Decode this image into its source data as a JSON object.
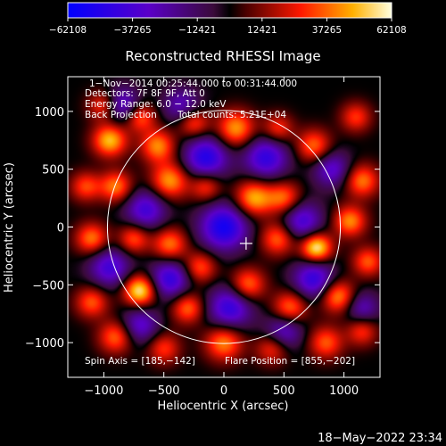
{
  "chart_data": {
    "type": "heatmap",
    "title": "Reconstructed RHESSI Image",
    "xlabel": "Heliocentric X (arcsec)",
    "ylabel": "Heliocentric Y (arcsec)",
    "xlim": [
      -1300,
      1300
    ],
    "ylim": [
      -1300,
      1300
    ],
    "x_ticks": [
      -1000,
      -500,
      0,
      500,
      1000
    ],
    "x_tick_labels": [
      "−1000",
      "−500",
      "0",
      "500",
      "1000"
    ],
    "y_ticks": [
      1000,
      500,
      0,
      -500,
      -1000
    ],
    "y_tick_labels": [
      "1000",
      "500",
      "0",
      "−500",
      "−1000"
    ],
    "colorbar": {
      "vmin": -62108,
      "vmax": 62108,
      "ticks": [
        -62108,
        -37265,
        -12421,
        12421,
        37265,
        62108
      ],
      "tick_labels": [
        "−62108",
        "−37265",
        "−12421",
        "12421",
        "37265",
        "62108"
      ]
    },
    "annotations": [
      "1−Nov−2014 00:25:44.000 to 00:31:44.000",
      "Detectors: 7F 8F 9F, Att 0",
      "Energy Range: 6.0 − 12.0 keV",
      "Back Projection",
      "Total counts: 5.21E+04"
    ],
    "bottom_left_text": "Spin Axis = [185,−142]",
    "bottom_right_text": "Flare Position = [855,−202]",
    "spin_axis": [
      185,
      -142
    ],
    "solar_limb_radius": 970,
    "blobs": [
      {
        "x": -1000,
        "y": 1050,
        "v": 35000,
        "s": 90
      },
      {
        "x": -950,
        "y": 750,
        "v": 50000,
        "s": 100
      },
      {
        "x": -700,
        "y": 950,
        "v": 38000,
        "s": 90
      },
      {
        "x": -550,
        "y": 700,
        "v": 42000,
        "s": 100
      },
      {
        "x": -250,
        "y": 900,
        "v": 35000,
        "s": 90
      },
      {
        "x": 100,
        "y": 850,
        "v": 45000,
        "s": 110
      },
      {
        "x": 450,
        "y": 850,
        "v": 30000,
        "s": 90
      },
      {
        "x": 750,
        "y": 700,
        "v": 38000,
        "s": 100
      },
      {
        "x": 1100,
        "y": 950,
        "v": 30000,
        "s": 90
      },
      {
        "x": 1150,
        "y": 400,
        "v": 40000,
        "s": 100
      },
      {
        "x": -1150,
        "y": 350,
        "v": 32000,
        "s": 90
      },
      {
        "x": -900,
        "y": 350,
        "v": 40000,
        "s": 95
      },
      {
        "x": -450,
        "y": 400,
        "v": 45000,
        "s": 110
      },
      {
        "x": -150,
        "y": 350,
        "v": 32000,
        "s": 90
      },
      {
        "x": 250,
        "y": 250,
        "v": 48000,
        "s": 110
      },
      {
        "x": 500,
        "y": 250,
        "v": 38000,
        "s": 100
      },
      {
        "x": 1050,
        "y": 50,
        "v": 42000,
        "s": 95
      },
      {
        "x": -1100,
        "y": -100,
        "v": 40000,
        "s": 95
      },
      {
        "x": -750,
        "y": -100,
        "v": 35000,
        "s": 90
      },
      {
        "x": -450,
        "y": -150,
        "v": 40000,
        "s": 100
      },
      {
        "x": -200,
        "y": -350,
        "v": 35000,
        "s": 95
      },
      {
        "x": 450,
        "y": -100,
        "v": 38000,
        "s": 100
      },
      {
        "x": 770,
        "y": -180,
        "v": 62108,
        "s": 90
      },
      {
        "x": -700,
        "y": -550,
        "v": 60000,
        "s": 95
      },
      {
        "x": -1100,
        "y": -650,
        "v": 35000,
        "s": 95
      },
      {
        "x": -300,
        "y": -700,
        "v": 38000,
        "s": 95
      },
      {
        "x": 200,
        "y": -500,
        "v": 40000,
        "s": 100
      },
      {
        "x": 550,
        "y": -700,
        "v": 40000,
        "s": 100
      },
      {
        "x": 950,
        "y": -600,
        "v": 45000,
        "s": 100
      },
      {
        "x": 1200,
        "y": -300,
        "v": 35000,
        "s": 90
      },
      {
        "x": -900,
        "y": -950,
        "v": 38000,
        "s": 100
      },
      {
        "x": -500,
        "y": -1050,
        "v": 30000,
        "s": 95
      },
      {
        "x": 0,
        "y": -1000,
        "v": 42000,
        "s": 110
      },
      {
        "x": 400,
        "y": -1050,
        "v": 30000,
        "s": 95
      },
      {
        "x": 850,
        "y": -1000,
        "v": 35000,
        "s": 100
      },
      {
        "x": 1150,
        "y": -900,
        "v": 30000,
        "s": 90
      },
      {
        "x": -850,
        "y": 1050,
        "v": -40000,
        "s": 110
      },
      {
        "x": -350,
        "y": 1050,
        "v": -30000,
        "s": 110
      },
      {
        "x": -150,
        "y": 600,
        "v": -50000,
        "s": 130
      },
      {
        "x": 350,
        "y": 600,
        "v": -45000,
        "s": 130
      },
      {
        "x": 900,
        "y": 500,
        "v": -35000,
        "s": 110
      },
      {
        "x": -650,
        "y": 150,
        "v": -40000,
        "s": 120
      },
      {
        "x": 0,
        "y": 0,
        "v": -55000,
        "s": 140
      },
      {
        "x": 650,
        "y": 50,
        "v": -40000,
        "s": 120
      },
      {
        "x": -950,
        "y": -350,
        "v": -40000,
        "s": 120
      },
      {
        "x": -450,
        "y": -450,
        "v": -45000,
        "s": 120
      },
      {
        "x": 50,
        "y": -700,
        "v": -45000,
        "s": 130
      },
      {
        "x": 750,
        "y": -450,
        "v": -45000,
        "s": 120
      },
      {
        "x": -700,
        "y": -850,
        "v": -35000,
        "s": 110
      },
      {
        "x": 500,
        "y": -900,
        "v": -35000,
        "s": 110
      },
      {
        "x": 1150,
        "y": -700,
        "v": -30000,
        "s": 100
      }
    ]
  },
  "footer": {
    "timestamp": "18−May−2022 23:34"
  }
}
